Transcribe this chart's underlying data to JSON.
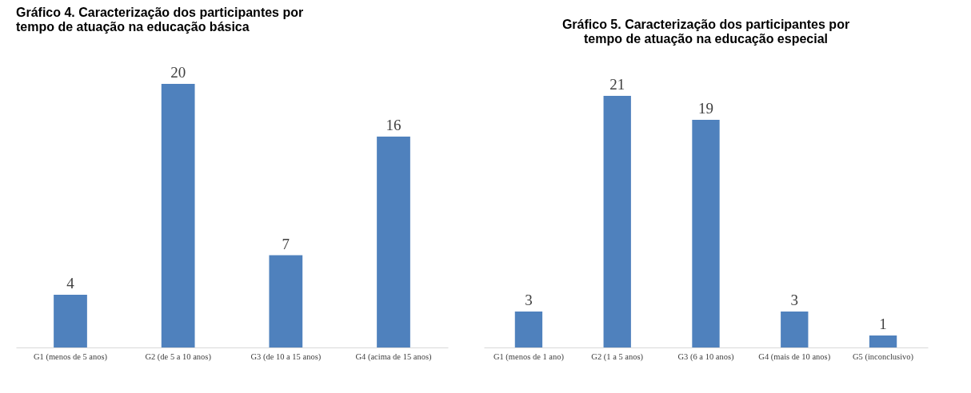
{
  "chart_data": [
    {
      "type": "bar",
      "title": "Gráfico 4. Caracterização dos participantes por tempo de atuação na educação básica",
      "categories": [
        "G1 (menos de 5 anos)",
        "G2 (de 5 a 10 anos)",
        "G3 (de 10 a 15 anos)",
        "G4 (acima de 15 anos)"
      ],
      "values": [
        4,
        20,
        7,
        16
      ],
      "color": "#4f81bd",
      "data_labels": true
    },
    {
      "type": "bar",
      "title": "Gráfico 5. Caracterização dos participantes por tempo de atuação na educação especial",
      "categories": [
        "G1 (menos de 1 ano)",
        "G2 (1 a 5 anos)",
        "G3 (6 a 10 anos)",
        "G4 (mais de 10 anos)",
        "G5 (inconclusivo)"
      ],
      "values": [
        3,
        21,
        19,
        3,
        1
      ],
      "color": "#4f81bd",
      "data_labels": true
    }
  ]
}
